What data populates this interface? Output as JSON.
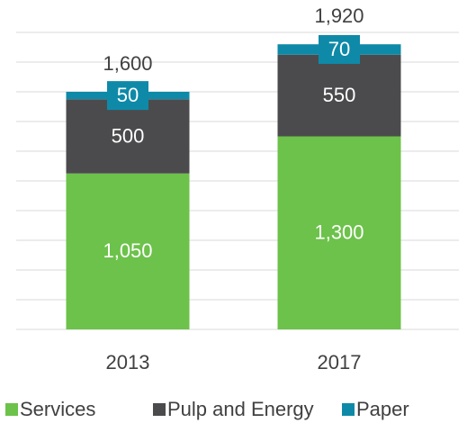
{
  "chart_data": {
    "type": "stacked_bar",
    "categories": [
      "2013",
      "2017"
    ],
    "series": [
      {
        "name": "Services",
        "color": "#6cc24a",
        "values": [
          1050,
          1300
        ],
        "value_labels": [
          "1,050",
          "1,300"
        ]
      },
      {
        "name": "Pulp and Energy",
        "color": "#4b4b4d",
        "values": [
          500,
          550
        ],
        "value_labels": [
          "500",
          "550"
        ]
      },
      {
        "name": "Paper",
        "color": "#0e8aa8",
        "values": [
          50,
          70
        ],
        "value_labels": [
          "50",
          "70"
        ]
      }
    ],
    "totals": [
      1600,
      1920
    ],
    "total_labels": [
      "1,600",
      "1,920"
    ],
    "ylim": [
      0,
      2000
    ],
    "yticks": [
      0,
      200,
      400,
      600,
      800,
      1000,
      1200,
      1400,
      1600,
      1800,
      2000
    ],
    "grid": true
  }
}
